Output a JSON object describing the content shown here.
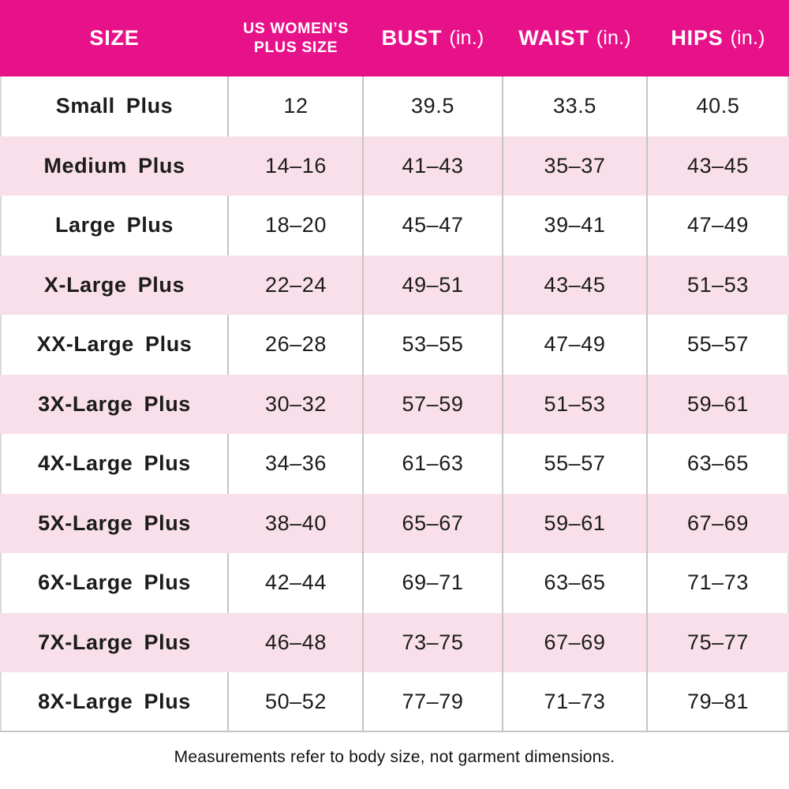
{
  "chart_data": {
    "type": "table",
    "columns": [
      "SIZE",
      "US WOMEN’S PLUS SIZE",
      "BUST (in.)",
      "WAIST (in.)",
      "HIPS (in.)"
    ],
    "rows": [
      [
        "Small Plus",
        "12",
        "39.5",
        "33.5",
        "40.5"
      ],
      [
        "Medium Plus",
        "14–16",
        "41–43",
        "35–37",
        "43–45"
      ],
      [
        "Large Plus",
        "18–20",
        "45–47",
        "39–41",
        "47–49"
      ],
      [
        "X-Large Plus",
        "22–24",
        "49–51",
        "43–45",
        "51–53"
      ],
      [
        "XX-Large Plus",
        "26–28",
        "53–55",
        "47–49",
        "55–57"
      ],
      [
        "3X-Large Plus",
        "30–32",
        "57–59",
        "51–53",
        "59–61"
      ],
      [
        "4X-Large Plus",
        "34–36",
        "61–63",
        "55–57",
        "63–65"
      ],
      [
        "5X-Large Plus",
        "38–40",
        "65–67",
        "59–61",
        "67–69"
      ],
      [
        "6X-Large Plus",
        "42–44",
        "69–71",
        "63–65",
        "71–73"
      ],
      [
        "7X-Large Plus",
        "46–48",
        "73–75",
        "67–69",
        "75–77"
      ],
      [
        "8X-Large Plus",
        "50–52",
        "77–79",
        "71–73",
        "79–81"
      ]
    ],
    "footnote": "Measurements refer to body size, not garment dimensions."
  },
  "header": {
    "size_label": "SIZE",
    "us_plus_label": "US WOMEN’S PLUS SIZE",
    "bust_label": "BUST",
    "waist_label": "WAIST",
    "hips_label": "HIPS",
    "unit_label": "(in.)"
  },
  "colors": {
    "header_bg": "#E7128A",
    "header_text": "#FFFFFF",
    "row_bg": "#FFFFFF",
    "alt_row_bg": "#F9DFEA",
    "grid_line": "#C5C5C5",
    "grid_line_outer": "#DADADA",
    "body_text": "#1C1C1C",
    "footnote_text": "#121212"
  }
}
